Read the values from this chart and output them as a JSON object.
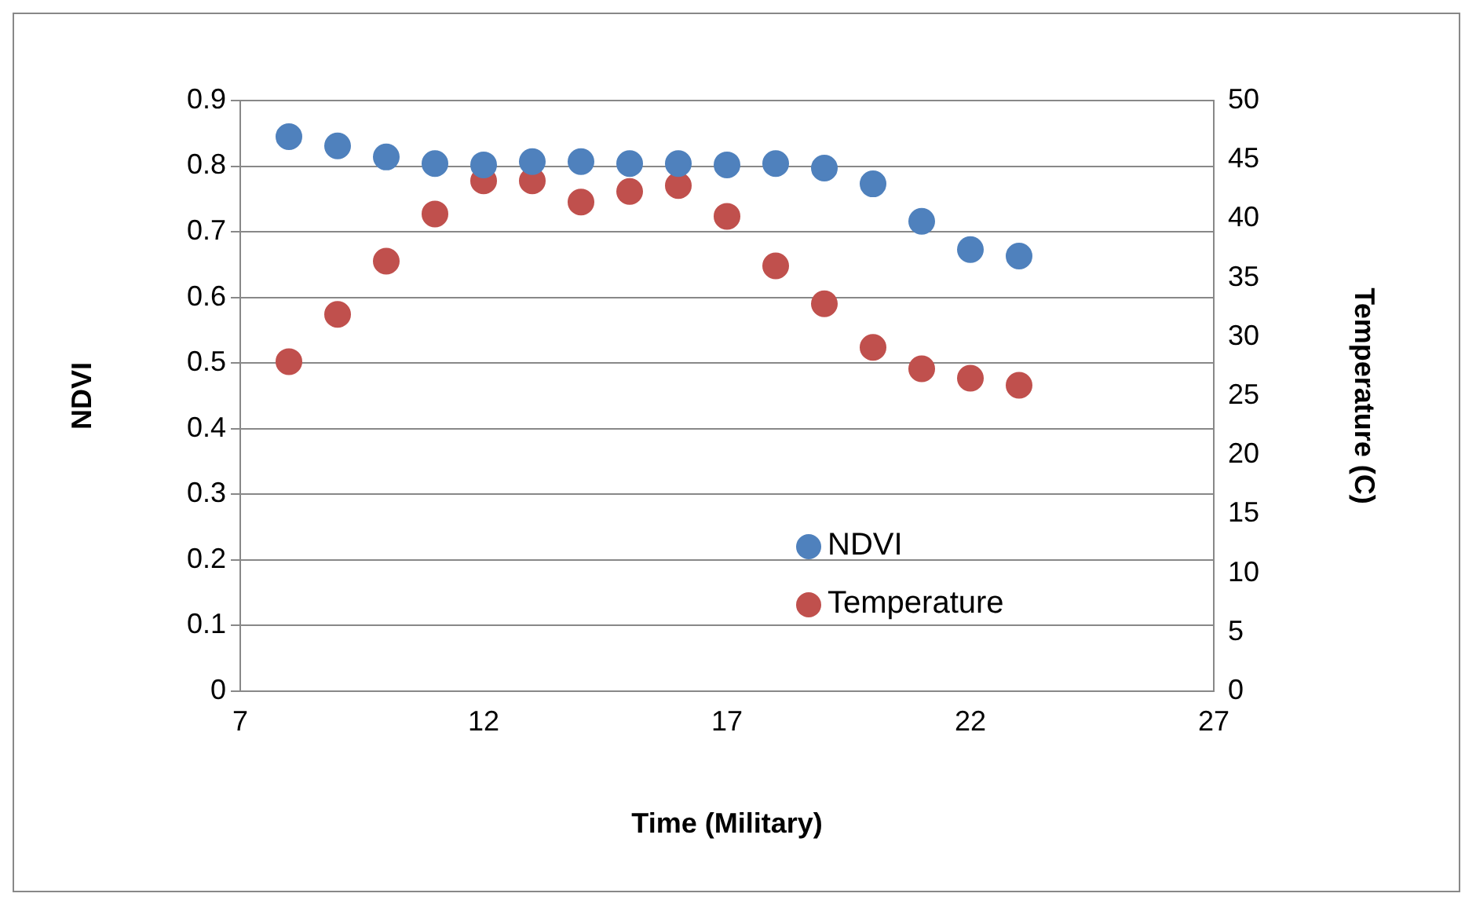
{
  "chart_data": {
    "type": "scatter",
    "xlabel": "Time (Military)",
    "ylabel": "NDVI",
    "y2label": "Temperature (C)",
    "x": [
      8,
      9,
      10,
      11,
      12,
      13,
      14,
      15,
      16,
      17,
      18,
      19,
      20,
      21,
      22,
      23
    ],
    "series": [
      {
        "name": "NDVI",
        "color": "#4f81bd",
        "values": [
          0.845,
          0.831,
          0.814,
          0.804,
          0.802,
          0.807,
          0.807,
          0.804,
          0.804,
          0.802,
          0.804,
          0.797,
          0.773,
          0.716,
          0.673,
          0.663
        ]
      },
      {
        "name": "Temperature",
        "color": "#c0504d",
        "axis": "y2",
        "values": [
          27.9,
          31.9,
          36.4,
          40.4,
          43.2,
          43.2,
          41.4,
          42.3,
          42.8,
          40.2,
          36.0,
          32.8,
          29.1,
          27.3,
          26.5,
          25.9
        ]
      }
    ],
    "xlim": [
      7,
      27
    ],
    "xticks": [
      7,
      12,
      17,
      22,
      27
    ],
    "ylim": [
      0,
      0.9
    ],
    "yticks": [
      0,
      0.1,
      0.2,
      0.3,
      0.4,
      0.5,
      0.6,
      0.7,
      0.8,
      0.9
    ],
    "y2lim": [
      0,
      50
    ],
    "y2ticks": [
      0,
      5,
      10,
      15,
      20,
      25,
      30,
      35,
      40,
      45,
      50
    ],
    "grid": "y",
    "legend": "bottom",
    "marker": "circle"
  }
}
